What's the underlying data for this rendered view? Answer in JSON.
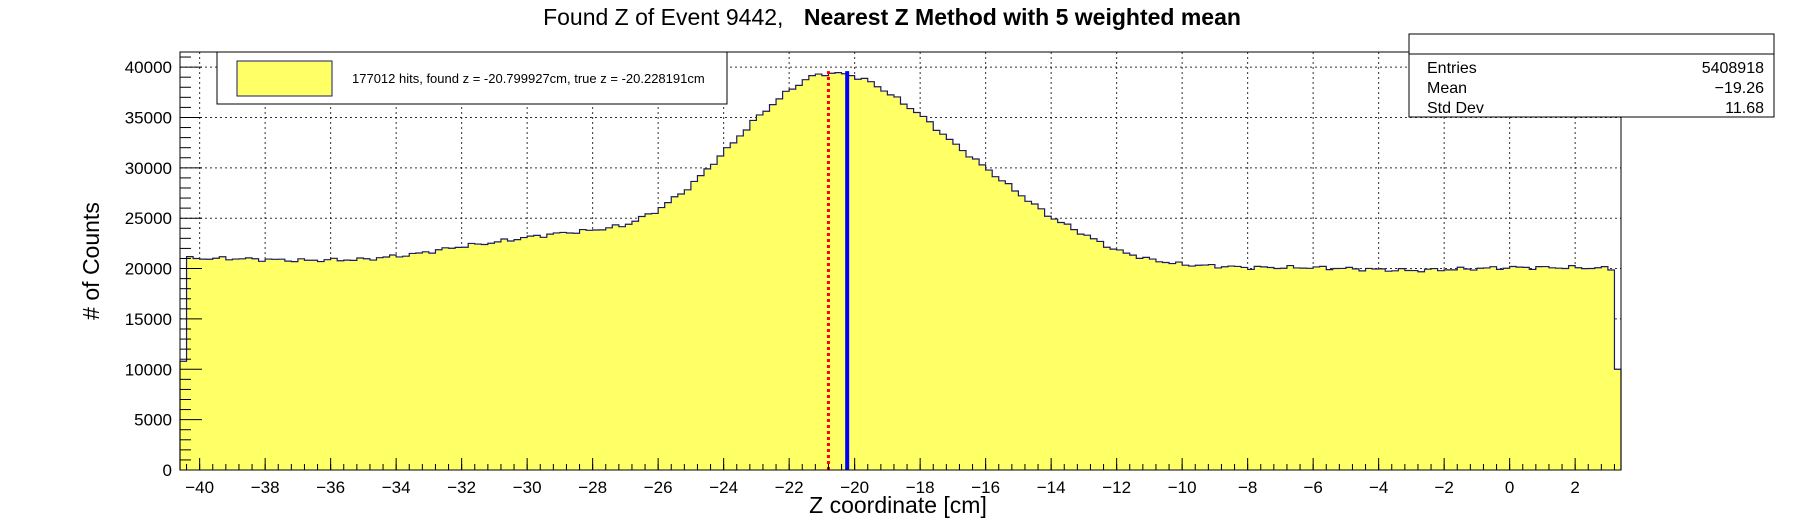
{
  "chart_data": {
    "type": "histogram",
    "title": {
      "prefix": "Found Z of Event 9442,",
      "bold": "Nearest Z Method with 5 weighted mean"
    },
    "xlabel": "Z coordinate [cm]",
    "ylabel": "# of Counts",
    "xlim": [
      -40.6,
      3.4
    ],
    "ylim": [
      0,
      41500
    ],
    "grid": true,
    "x_ticks": [
      -40,
      -38,
      -36,
      -34,
      -32,
      -30,
      -28,
      -26,
      -24,
      -22,
      -20,
      -18,
      -16,
      -14,
      -12,
      -10,
      -8,
      -6,
      -4,
      -2,
      0,
      2
    ],
    "y_ticks": [
      0,
      5000,
      10000,
      15000,
      20000,
      25000,
      30000,
      35000,
      40000
    ],
    "fill_color": "#ffff66",
    "line_color": "#1a1a66",
    "bin_width": 0.2,
    "bins": [
      {
        "x0": -40.6,
        "x1": -40.4,
        "y": 10800
      },
      {
        "x0": -40.4,
        "x1": 3.2,
        "profile": [
          [
            -40.4,
            21000
          ],
          [
            -39.0,
            21000
          ],
          [
            -37.0,
            20800
          ],
          [
            -35.0,
            20900
          ],
          [
            -33.5,
            21400
          ],
          [
            -32.0,
            22200
          ],
          [
            -31.0,
            22600
          ],
          [
            -30.0,
            23100
          ],
          [
            -29.0,
            23500
          ],
          [
            -28.0,
            23800
          ],
          [
            -27.0,
            24300
          ],
          [
            -26.0,
            25800
          ],
          [
            -25.0,
            28200
          ],
          [
            -24.0,
            31500
          ],
          [
            -23.0,
            34900
          ],
          [
            -22.0,
            37700
          ],
          [
            -21.3,
            39100
          ],
          [
            -20.8,
            39400
          ],
          [
            -20.2,
            39300
          ],
          [
            -19.5,
            38500
          ],
          [
            -19.0,
            37500
          ],
          [
            -18.0,
            35300
          ],
          [
            -17.0,
            32500
          ],
          [
            -16.0,
            30000
          ],
          [
            -15.0,
            27500
          ],
          [
            -14.0,
            25100
          ],
          [
            -13.0,
            23400
          ],
          [
            -12.0,
            21800
          ],
          [
            -11.0,
            20900
          ],
          [
            -10.0,
            20400
          ],
          [
            -8.0,
            20100
          ],
          [
            -6.0,
            20100
          ],
          [
            -4.0,
            19900
          ],
          [
            -3.0,
            19800
          ],
          [
            -2.0,
            19900
          ],
          [
            -1.0,
            20000
          ],
          [
            0.0,
            20100
          ],
          [
            1.0,
            20100
          ],
          [
            2.0,
            20100
          ],
          [
            3.2,
            20000
          ]
        ]
      },
      {
        "x0": 3.2,
        "x1": 3.4,
        "y": 10000
      }
    ],
    "markers": [
      {
        "label": "found z",
        "x": -20.799927,
        "color": "#ff0000",
        "style": "dashed"
      },
      {
        "label": "true z",
        "x": -20.228191,
        "color": "#0000ff",
        "style": "solid"
      }
    ],
    "legend": {
      "position": "top-left",
      "entries": [
        {
          "label": "177012 hits, found z = -20.799927cm, true z = -20.228191cm",
          "color": "#ffff66"
        }
      ]
    },
    "stats_box": {
      "position": "top-right",
      "rows": [
        {
          "label": "Entries",
          "value": "5408918"
        },
        {
          "label": "Mean",
          "value": "−19.26"
        },
        {
          "label": "Std Dev",
          "value": "11.68"
        }
      ]
    }
  }
}
